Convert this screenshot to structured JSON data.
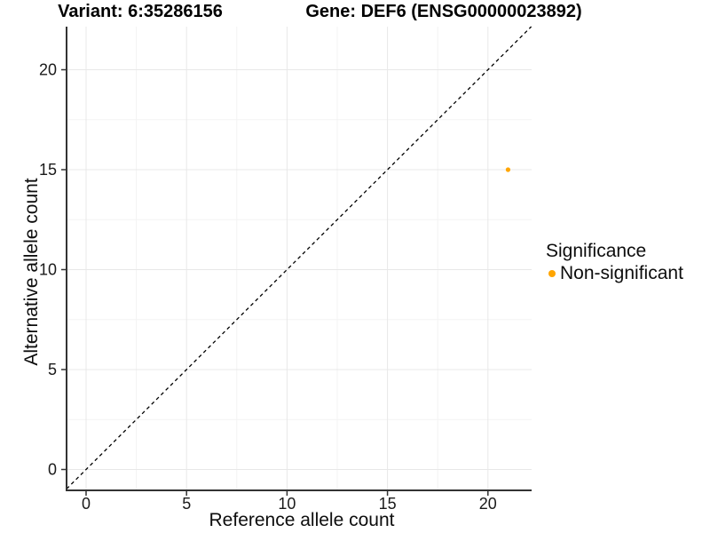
{
  "chart_data": {
    "type": "scatter",
    "title_left": "Variant: 6:35286156",
    "title_right": "Gene: DEF6 (ENSG00000023892)",
    "xlabel": "Reference allele count",
    "ylabel": "Alternative allele count",
    "xlim": [
      -1,
      22.2
    ],
    "ylim": [
      -1,
      22.2
    ],
    "x_ticks": [
      0,
      5,
      10,
      15,
      20
    ],
    "y_ticks": [
      0,
      5,
      10,
      15,
      20
    ],
    "x_minor_ticks": [
      2.5,
      7.5,
      12.5,
      17.5
    ],
    "y_minor_ticks": [
      2.5,
      7.5,
      12.5,
      17.5
    ],
    "grid": true,
    "points": [
      {
        "x": 21,
        "y": 15,
        "series": "Non-significant"
      }
    ],
    "point_radius_px": 2.6,
    "reference_line": {
      "type": "identity y=x",
      "style": "dashed",
      "color": "#000000"
    },
    "legend": {
      "title": "Significance",
      "position": "right",
      "entries": [
        {
          "label": "Non-significant",
          "color": "#FFA500",
          "marker": "circle"
        }
      ]
    },
    "colors": {
      "point": "#FFA500",
      "axis_line": "#333333",
      "tick_mark": "#333333",
      "tick_label": "#1a1a1a",
      "grid_major": "#e8e8e8",
      "grid_minor": "#f3f3f3",
      "background": "#ffffff"
    }
  }
}
